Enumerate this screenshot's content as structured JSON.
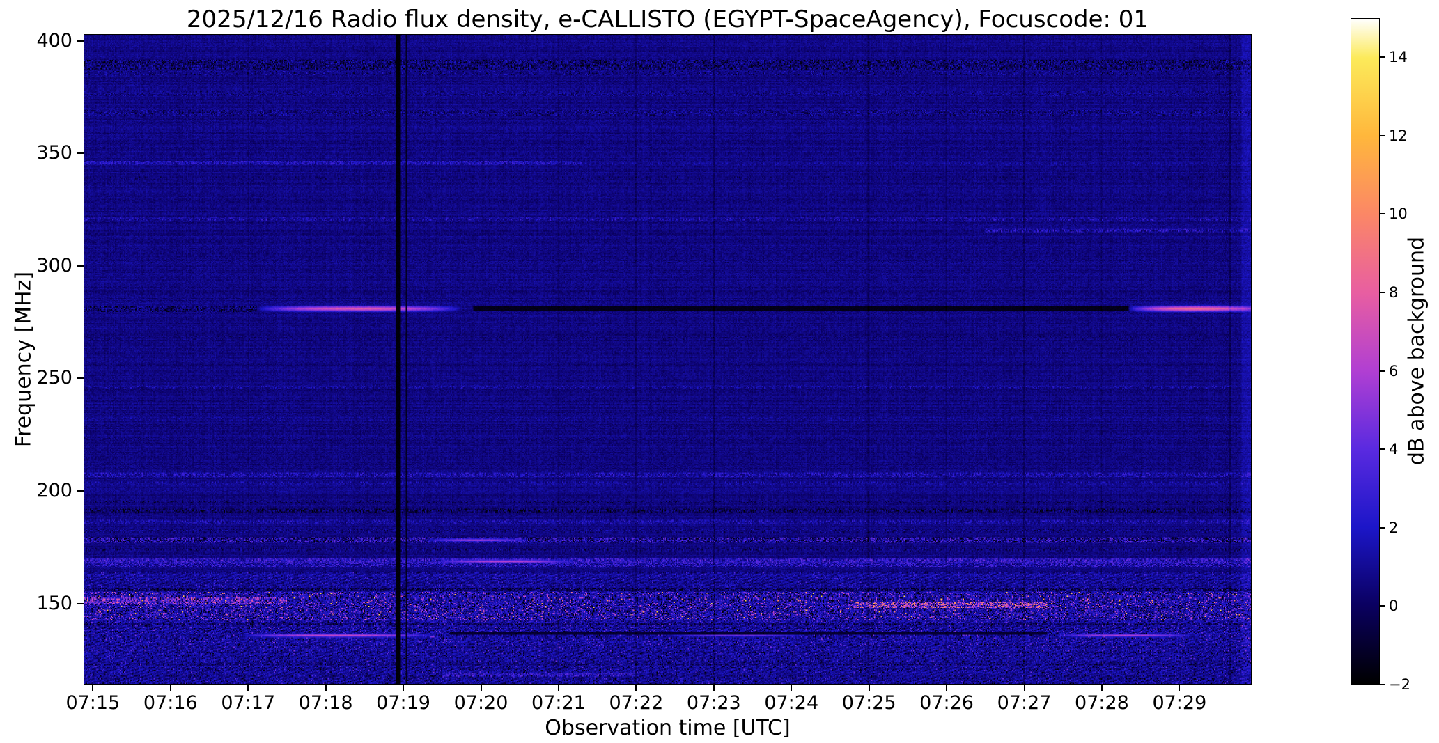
{
  "chart_data": {
    "type": "heatmap",
    "title": "2025/12/16  Radio flux density, e-CALLISTO (EGYPT-SpaceAgency), Focuscode: 01",
    "xlabel": "Observation time [UTC]",
    "ylabel": "Frequency [MHz]",
    "x_ticks": [
      "07:15",
      "07:16",
      "07:17",
      "07:18",
      "07:19",
      "07:20",
      "07:21",
      "07:22",
      "07:23",
      "07:24",
      "07:25",
      "07:26",
      "07:27",
      "07:28",
      "07:29"
    ],
    "time_range_min": [
      -0.12,
      14.93
    ],
    "freq_range_mhz": [
      114,
      403
    ],
    "y_ticks": [
      400,
      350,
      300,
      250,
      200,
      150
    ],
    "grid": false,
    "colorbar": {
      "label": "dB above background",
      "value_range": [
        -2,
        15
      ],
      "ticks": [
        {
          "value": 14,
          "label": "14"
        },
        {
          "value": 12,
          "label": "12"
        },
        {
          "value": 10,
          "label": "10"
        },
        {
          "value": 8,
          "label": "8"
        },
        {
          "value": 6,
          "label": "6"
        },
        {
          "value": 4,
          "label": "4"
        },
        {
          "value": 2,
          "label": "2"
        },
        {
          "value": 0,
          "label": "0"
        },
        {
          "value": -2,
          "label": "−2"
        }
      ],
      "gradient_stops": [
        [
          0.0,
          "#000000"
        ],
        [
          0.118,
          "#0a0060"
        ],
        [
          0.235,
          "#1c16c8"
        ],
        [
          0.353,
          "#5a2ae0"
        ],
        [
          0.471,
          "#b13fd2"
        ],
        [
          0.588,
          "#e85ea1"
        ],
        [
          0.706,
          "#fb8766"
        ],
        [
          0.824,
          "#ffb73c"
        ],
        [
          0.941,
          "#fcea5a"
        ],
        [
          1.0,
          "#ffffff"
        ]
      ]
    },
    "features": {
      "background": {
        "base": 0.65,
        "noise": 0.55,
        "row_banding": 0.3,
        "col_banding": 0.16
      },
      "regions": [
        {
          "f0": 155,
          "f1": 164,
          "bias": 0.35,
          "noise": 0.85,
          "speckle": 0.05,
          "lo": 1.5,
          "hi": 4,
          "diag": true
        },
        {
          "f0": 142.5,
          "f1": 155,
          "bias": 0.75,
          "noise": 1.25,
          "speckle": 0.2,
          "lo": 1.5,
          "hi": 7,
          "dark_speckle": 0.12,
          "hot_speckle": 0.012,
          "hot_lo": 8,
          "hot_hi": 13.5
        },
        {
          "f0": 128,
          "f1": 142.5,
          "bias": 0.45,
          "noise": 0.95,
          "speckle": 0.09,
          "lo": 1.5,
          "hi": 5,
          "dark_speckle": 0.05,
          "diag": true
        },
        {
          "f0": 114,
          "f1": 128,
          "bias": 0.35,
          "noise": 0.85,
          "speckle": 0.07,
          "lo": 1,
          "hi": 4.5,
          "dark_speckle": 0.06,
          "diag": true
        }
      ],
      "h_bands": [
        {
          "freq": 389.5,
          "hw": 2.2,
          "t0": -1,
          "t1": 16,
          "mode": "speckle",
          "density": 0.8,
          "lo": -2,
          "hi": 2.2
        },
        {
          "freq": 386,
          "hw": 1,
          "t0": -1,
          "t1": 16,
          "mode": "speckle",
          "density": 0.3,
          "lo": -1.5,
          "hi": 2.5
        },
        {
          "freq": 377,
          "hw": 1.2,
          "t0": -1,
          "t1": 16,
          "mode": "speckle",
          "density": 0.4,
          "lo": -0.8,
          "hi": 2.2
        },
        {
          "freq": 368,
          "hw": 1.4,
          "t0": -1,
          "t1": 16,
          "mode": "speckle",
          "density": 0.5,
          "lo": -1.2,
          "hi": 2.4
        },
        {
          "freq": 346,
          "hw": 0.8,
          "t0": -0.2,
          "t1": 6.3,
          "mode": "speckle",
          "density": 0.6,
          "lo": 1.5,
          "hi": 3.2
        },
        {
          "freq": 345.5,
          "hw": 0.6,
          "t0": 6.3,
          "t1": 15,
          "mode": "speckle",
          "density": 0.25,
          "lo": 1,
          "hi": 2.2
        },
        {
          "freq": 339,
          "hw": 0.7,
          "t0": -1,
          "t1": 16,
          "mode": "speckle",
          "density": 0.2,
          "lo": -1,
          "hi": 1
        },
        {
          "freq": 321,
          "hw": 1,
          "t0": -1,
          "t1": 16,
          "mode": "speckle",
          "density": 0.4,
          "lo": 0.5,
          "hi": 3.2
        },
        {
          "freq": 316,
          "hw": 0.8,
          "t0": 11.5,
          "t1": 15,
          "mode": "speckle",
          "density": 0.5,
          "lo": 1,
          "hi": 3.5
        },
        {
          "freq": 302,
          "hw": 0.7,
          "t0": -1,
          "t1": 16,
          "mode": "speckle",
          "density": 0.15,
          "lo": -0.5,
          "hi": 1.5
        },
        {
          "freq": 281,
          "hw": 1.6,
          "t0": -0.2,
          "t1": 2.1,
          "mode": "speckle",
          "density": 0.7,
          "lo": -2,
          "hi": 2
        },
        {
          "freq": 281,
          "hw": 1.8,
          "t0": 2.1,
          "t1": 4.75,
          "mode": "bright",
          "peak": 7.5,
          "soft": true
        },
        {
          "freq": 281,
          "hw": 0.9,
          "t0": 4.9,
          "t1": 13.35,
          "mode": "dark",
          "value": -1.7
        },
        {
          "freq": 281,
          "hw": 1.9,
          "t0": 13.35,
          "t1": 15.1,
          "mode": "bright",
          "peak": 8.5,
          "soft": true
        },
        {
          "freq": 268,
          "hw": 0.8,
          "t0": -1,
          "t1": 16,
          "mode": "speckle",
          "density": 0.15,
          "lo": -0.8,
          "hi": 1.2
        },
        {
          "freq": 246,
          "hw": 0.9,
          "t0": -1,
          "t1": 16,
          "mode": "speckle",
          "density": 0.3,
          "lo": 0.8,
          "hi": 2.6
        },
        {
          "freq": 232,
          "hw": 0.7,
          "t0": -1,
          "t1": 16,
          "mode": "speckle",
          "density": 0.15,
          "lo": 0.5,
          "hi": 2
        },
        {
          "freq": 223,
          "hw": 0.7,
          "t0": -1,
          "t1": 16,
          "mode": "speckle",
          "density": 0.15,
          "lo": -0.5,
          "hi": 1.5
        },
        {
          "freq": 207,
          "hw": 1,
          "t0": -1,
          "t1": 16,
          "mode": "speckle",
          "density": 0.5,
          "lo": 1,
          "hi": 3.2
        },
        {
          "freq": 203,
          "hw": 0.8,
          "t0": -1,
          "t1": 16,
          "mode": "speckle",
          "density": 0.35,
          "lo": 0.5,
          "hi": 2.6
        },
        {
          "freq": 195,
          "hw": 0.6,
          "t0": -1,
          "t1": 16,
          "mode": "speckle",
          "density": 0.3,
          "lo": -1.5,
          "hi": 1
        },
        {
          "freq": 191,
          "hw": 1.2,
          "t0": -1,
          "t1": 16,
          "mode": "speckle",
          "density": 0.75,
          "lo": -2,
          "hi": 1.5
        },
        {
          "freq": 186,
          "hw": 1,
          "t0": -1,
          "t1": 16,
          "mode": "speckle",
          "density": 0.5,
          "lo": 0.5,
          "hi": 3
        },
        {
          "freq": 182,
          "hw": 0.8,
          "t0": -1,
          "t1": 16,
          "mode": "speckle",
          "density": 0.4,
          "lo": -1,
          "hi": 2
        },
        {
          "freq": 178,
          "hw": 1.4,
          "t0": -1,
          "t1": 16,
          "mode": "speckle",
          "density": 0.85,
          "lo": -2,
          "hi": 4.5
        },
        {
          "freq": 178,
          "hw": 1,
          "t0": 4.3,
          "t1": 5.6,
          "mode": "bright",
          "peak": 5.5,
          "soft": true
        },
        {
          "freq": 174,
          "hw": 0.8,
          "t0": -1,
          "t1": 16,
          "mode": "speckle",
          "density": 0.4,
          "lo": -1.5,
          "hi": 2
        },
        {
          "freq": 169,
          "hw": 1.3,
          "t0": -1,
          "t1": 16,
          "mode": "speckle",
          "density": 0.8,
          "lo": 0.5,
          "hi": 4.5
        },
        {
          "freq": 168.5,
          "hw": 1.2,
          "t0": 4.4,
          "t1": 6.2,
          "mode": "bright",
          "peak": 6.5,
          "soft": true
        },
        {
          "freq": 167,
          "hw": 1,
          "t0": -1,
          "t1": 16,
          "mode": "speckle",
          "density": 0.5,
          "lo": 1,
          "hi": 4
        },
        {
          "freq": 156,
          "hw": 0.7,
          "t0": -1,
          "t1": 16,
          "mode": "speckle",
          "density": 0.5,
          "lo": -2,
          "hi": 0.5
        },
        {
          "freq": 151,
          "hw": 1.4,
          "t0": -0.2,
          "t1": 2.5,
          "mode": "speckle",
          "density": 0.5,
          "lo": 2,
          "hi": 8
        },
        {
          "freq": 149,
          "hw": 1.2,
          "t0": 9.8,
          "t1": 12.3,
          "mode": "speckle",
          "density": 0.5,
          "lo": 3,
          "hi": 11
        },
        {
          "freq": 140.5,
          "hw": 0.6,
          "t0": -1,
          "t1": 16,
          "mode": "speckle",
          "density": 0.45,
          "lo": -1.8,
          "hi": 0.8
        },
        {
          "freq": 135.5,
          "hw": 1.1,
          "t0": 1.9,
          "t1": 4.4,
          "mode": "bright",
          "peak": 6.8,
          "soft": true
        },
        {
          "freq": 135.5,
          "hw": 0.9,
          "t0": 7.4,
          "t1": 9.2,
          "mode": "bright",
          "peak": 4.5,
          "soft": true
        },
        {
          "freq": 135.5,
          "hw": 1,
          "t0": 12.4,
          "t1": 14.2,
          "mode": "bright",
          "peak": 6.2,
          "soft": true
        },
        {
          "freq": 136.5,
          "hw": 0.5,
          "t0": 4.6,
          "t1": 12.3,
          "mode": "dark",
          "value": -1.2
        },
        {
          "freq": 123,
          "hw": 0.8,
          "t0": -1,
          "t1": 16,
          "mode": "speckle",
          "density": 0.35,
          "lo": -1.5,
          "hi": 1.5
        },
        {
          "freq": 118,
          "hw": 0.9,
          "t0": 4.5,
          "t1": 7,
          "mode": "speckle",
          "density": 0.5,
          "lo": 1.5,
          "hi": 4.5
        }
      ],
      "v_lines": [
        {
          "t": 3.93,
          "hw": 0.03,
          "value": -2
        },
        {
          "t": 4.04,
          "hw": 0.013,
          "value": -1.5
        },
        {
          "t": 2,
          "hw": 0.01,
          "delta": -0.7
        },
        {
          "t": 6,
          "hw": 0.01,
          "delta": -0.6
        },
        {
          "t": 7,
          "hw": 0.01,
          "delta": -0.6
        },
        {
          "t": 8,
          "hw": 0.01,
          "delta": -0.7
        },
        {
          "t": 10,
          "hw": 0.01,
          "delta": -0.7
        },
        {
          "t": 11,
          "hw": 0.01,
          "delta": -0.6
        },
        {
          "t": 12,
          "hw": 0.01,
          "delta": -0.7
        },
        {
          "t": 13,
          "hw": 0.01,
          "delta": -0.5
        },
        {
          "t": 14.65,
          "hw": 0.012,
          "delta": -0.9
        },
        {
          "t": 14.88,
          "hw": 0.07,
          "delta": 0.7
        }
      ]
    }
  }
}
